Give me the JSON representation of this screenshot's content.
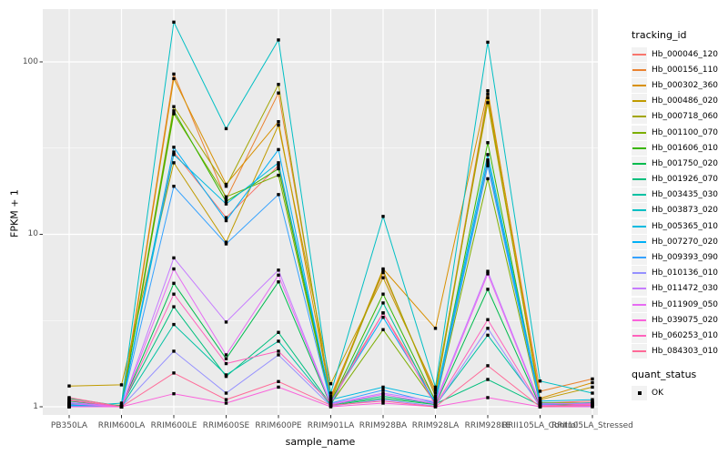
{
  "figure": {
    "y_axis": {
      "label": "FPKM + 1",
      "tick_labels": [
        "1",
        "10",
        "100"
      ],
      "tick_values": [
        1,
        10,
        100
      ]
    },
    "x_axis": {
      "label": "sample_name"
    },
    "legend": {
      "tracking_title": "tracking_id",
      "quant_title": "quant_status",
      "quant_ok_label": "OK"
    }
  },
  "colors": {
    "panel_bg": "#EBEBEB",
    "grid": "#FFFFFF",
    "axis_text": "#4D4D4D",
    "tick_mark": "#333333",
    "point": "#000000",
    "legend_key_bg": "#F2F2F2"
  },
  "chart_data": {
    "type": "line",
    "title": "",
    "xlabel": "sample_name",
    "ylabel": "FPKM + 1",
    "y_scale": "log10",
    "ylim": [
      1,
      200
    ],
    "y_major_ticks": [
      1,
      10,
      100
    ],
    "y_minor_ticks": [
      3.1623,
      31.623
    ],
    "grid": true,
    "legend_position": "right",
    "point_marker": "black-square",
    "categories": [
      "PB350LA",
      "RRIM600LA",
      "RRIM600LE",
      "RRIM600SE",
      "RRIM600PE",
      "RRIM901LA",
      "RRIM928BA",
      "RRIM928LA",
      "RRIM928LE",
      "RRII105LA_Control",
      "RRII105LA_Stressed"
    ],
    "series": [
      {
        "name": "Hb_000046_120",
        "color": "#F8766D",
        "values": [
          1.1,
          1.0,
          30,
          12.5,
          25,
          1.1,
          3.5,
          1.1,
          26,
          1.05,
          1.08
        ]
      },
      {
        "name": "Hb_000156_110",
        "color": "#EA8331",
        "values": [
          1.05,
          1.02,
          85,
          16,
          66,
          1.15,
          6.0,
          1.2,
          65,
          1.23,
          1.45
        ]
      },
      {
        "name": "Hb_000302_360",
        "color": "#D89000",
        "values": [
          1.02,
          1.0,
          80,
          19.5,
          45,
          1.12,
          6.3,
          2.85,
          68,
          1.12,
          1.38
        ]
      },
      {
        "name": "Hb_000486_020",
        "color": "#C09B00",
        "values": [
          1.32,
          1.34,
          26,
          9.0,
          43,
          1.36,
          5.6,
          1.25,
          58,
          1.1,
          1.3
        ]
      },
      {
        "name": "Hb_000718_060",
        "color": "#A3A500",
        "values": [
          1.04,
          1.0,
          55,
          19,
          74,
          1.08,
          6.2,
          1.15,
          62,
          1.06,
          1.05
        ]
      },
      {
        "name": "Hb_001100_070",
        "color": "#7CAE00",
        "values": [
          1.0,
          1.0,
          50,
          16.5,
          22,
          1.04,
          2.8,
          1.05,
          21,
          1.02,
          1.02
        ]
      },
      {
        "name": "Hb_001606_010",
        "color": "#39B600",
        "values": [
          1.01,
          1.0,
          52,
          15.5,
          24,
          1.06,
          4.5,
          1.08,
          34,
          1.04,
          1.03
        ]
      },
      {
        "name": "Hb_001750_020",
        "color": "#00BB4E",
        "values": [
          1.08,
          1.0,
          5.2,
          1.9,
          5.3,
          1.02,
          1.12,
          1.03,
          4.8,
          1.01,
          1.02
        ]
      },
      {
        "name": "Hb_001926_070",
        "color": "#00BF7D",
        "values": [
          1.12,
          1.01,
          3.8,
          1.5,
          2.7,
          1.03,
          1.15,
          1.04,
          1.44,
          1.02,
          1.06
        ]
      },
      {
        "name": "Hb_003435_030",
        "color": "#00C1A3",
        "values": [
          1.03,
          1.0,
          3.0,
          1.53,
          2.4,
          1.02,
          4.0,
          1.02,
          2.6,
          1.03,
          1.02
        ]
      },
      {
        "name": "Hb_003873_020",
        "color": "#00BFC4",
        "values": [
          1.0,
          1.05,
          170,
          41,
          134,
          1.2,
          12.7,
          1.3,
          130,
          1.41,
          1.2
        ]
      },
      {
        "name": "Hb_005365_010",
        "color": "#00BAE0",
        "values": [
          1.05,
          1.0,
          29,
          15,
          26,
          1.1,
          1.3,
          1.12,
          29,
          1.08,
          1.1
        ]
      },
      {
        "name": "Hb_007270_020",
        "color": "#00B0F6",
        "values": [
          1.02,
          1.0,
          32,
          12,
          31,
          1.07,
          3.3,
          1.06,
          27,
          1.05,
          1.04
        ]
      },
      {
        "name": "Hb_009393_090",
        "color": "#35A2FF",
        "values": [
          1.01,
          1.0,
          19,
          8.8,
          17,
          1.05,
          1.25,
          1.05,
          25,
          1.03,
          1.02
        ]
      },
      {
        "name": "Hb_010136_010",
        "color": "#9590FF",
        "values": [
          1.0,
          1.0,
          2.1,
          1.2,
          2.0,
          1.01,
          1.1,
          1.01,
          2.85,
          1.0,
          1.01
        ]
      },
      {
        "name": "Hb_011472_030",
        "color": "#C77CFF",
        "values": [
          1.06,
          1.0,
          7.3,
          3.1,
          6.2,
          1.04,
          1.2,
          1.07,
          6.1,
          1.04,
          1.05
        ]
      },
      {
        "name": "Hb_011909_050",
        "color": "#E76BF3",
        "values": [
          1.04,
          1.0,
          6.3,
          2.0,
          5.8,
          1.03,
          1.18,
          1.04,
          5.9,
          1.02,
          1.03
        ]
      },
      {
        "name": "Hb_039075_020",
        "color": "#FA62DB",
        "values": [
          1.0,
          1.0,
          1.19,
          1.05,
          1.3,
          1.0,
          1.05,
          1.0,
          1.13,
          1.0,
          1.0
        ]
      },
      {
        "name": "Hb_060253_010",
        "color": "#FF62BC",
        "values": [
          1.09,
          1.0,
          4.5,
          1.78,
          2.1,
          1.05,
          3.5,
          1.02,
          3.2,
          1.01,
          1.04
        ]
      },
      {
        "name": "Hb_084303_010",
        "color": "#FF6A98",
        "values": [
          1.13,
          1.0,
          1.57,
          1.1,
          1.4,
          1.02,
          1.08,
          1.0,
          1.73,
          1.0,
          1.02
        ]
      }
    ],
    "quant_status": {
      "label": "OK"
    }
  }
}
